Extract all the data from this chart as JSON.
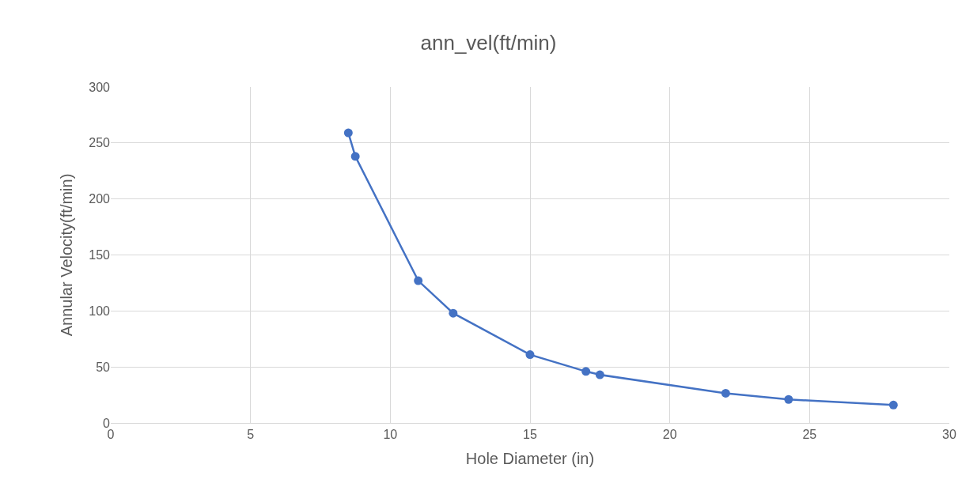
{
  "chart_data": {
    "type": "line",
    "title": "ann_vel(ft/min)",
    "xlabel": "Hole Diameter (in)",
    "ylabel": "Annular Velocity(ft/min)",
    "series": [
      {
        "color": "#4472c4",
        "x": [
          8.5,
          8.75,
          11,
          12.25,
          15,
          17,
          17.5,
          22,
          24.25,
          28
        ],
        "values": [
          259,
          238,
          127,
          98,
          61,
          46,
          43,
          26.5,
          21,
          16
        ]
      }
    ],
    "xlim": [
      0,
      30
    ],
    "xticks": [
      0,
      5,
      10,
      15,
      20,
      25,
      30
    ],
    "ylim": [
      0,
      300
    ],
    "yticks": [
      0,
      50,
      100,
      150,
      200,
      250,
      300
    ],
    "grid": true,
    "marker": "circle",
    "line_style": "solid"
  }
}
